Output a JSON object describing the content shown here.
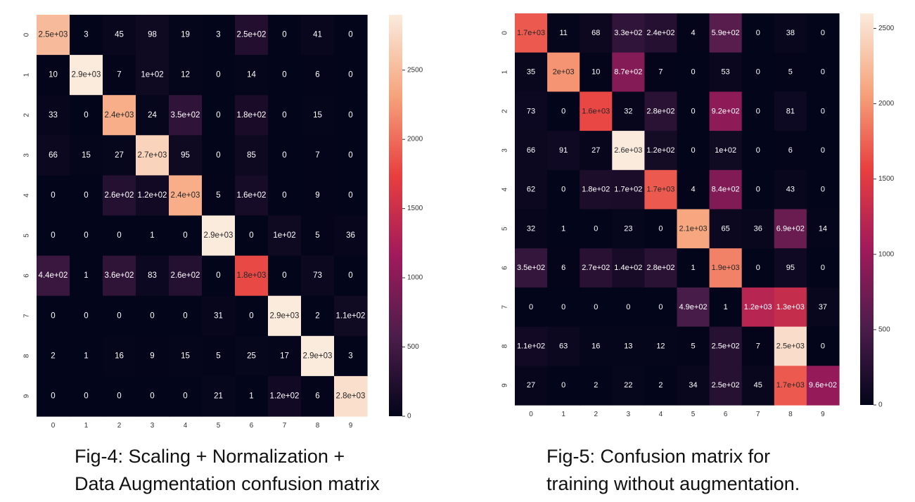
{
  "caption_fig4": {
    "line1": "Fig-4: Scaling + Normalization +",
    "line2": "Data Augmentation confusion matrix"
  },
  "caption_fig5": {
    "line1": "Fig-5: Confusion matrix for",
    "line2": "training without augmentation."
  },
  "chart_data": [
    {
      "type": "heatmap",
      "title": "",
      "xlabel": "",
      "ylabel": "",
      "x_ticks": [
        "0",
        "1",
        "2",
        "3",
        "4",
        "5",
        "6",
        "7",
        "8",
        "9"
      ],
      "y_ticks": [
        "0",
        "1",
        "2",
        "3",
        "4",
        "5",
        "6",
        "7",
        "8",
        "9"
      ],
      "values": [
        [
          2500,
          3,
          45,
          98,
          19,
          3,
          250,
          0,
          41,
          0
        ],
        [
          10,
          2900,
          7,
          100,
          12,
          0,
          14,
          0,
          6,
          0
        ],
        [
          33,
          0,
          2400,
          24,
          350,
          0,
          180,
          0,
          15,
          0
        ],
        [
          66,
          15,
          27,
          2700,
          95,
          0,
          85,
          0,
          7,
          0
        ],
        [
          0,
          0,
          260,
          120,
          2400,
          5,
          160,
          0,
          9,
          0
        ],
        [
          0,
          0,
          0,
          1,
          0,
          2900,
          0,
          100,
          5,
          36
        ],
        [
          440,
          1,
          360,
          83,
          260,
          0,
          1800,
          0,
          73,
          0
        ],
        [
          0,
          0,
          0,
          0,
          0,
          31,
          0,
          2900,
          2,
          110
        ],
        [
          2,
          1,
          16,
          9,
          15,
          5,
          25,
          17,
          2900,
          3
        ],
        [
          0,
          0,
          0,
          0,
          0,
          21,
          1,
          120,
          6,
          2800
        ]
      ],
      "labels": [
        [
          "2.5e+03",
          "3",
          "45",
          "98",
          "19",
          "3",
          "2.5e+02",
          "0",
          "41",
          "0"
        ],
        [
          "10",
          "2.9e+03",
          "7",
          "1e+02",
          "12",
          "0",
          "14",
          "0",
          "6",
          "0"
        ],
        [
          "33",
          "0",
          "2.4e+03",
          "24",
          "3.5e+02",
          "0",
          "1.8e+02",
          "0",
          "15",
          "0"
        ],
        [
          "66",
          "15",
          "27",
          "2.7e+03",
          "95",
          "0",
          "85",
          "0",
          "7",
          "0"
        ],
        [
          "0",
          "0",
          "2.6e+02",
          "1.2e+02",
          "2.4e+03",
          "5",
          "1.6e+02",
          "0",
          "9",
          "0"
        ],
        [
          "0",
          "0",
          "0",
          "1",
          "0",
          "2.9e+03",
          "0",
          "1e+02",
          "5",
          "36"
        ],
        [
          "4.4e+02",
          "1",
          "3.6e+02",
          "83",
          "2.6e+02",
          "0",
          "1.8e+03",
          "0",
          "73",
          "0"
        ],
        [
          "0",
          "0",
          "0",
          "0",
          "0",
          "31",
          "0",
          "2.9e+03",
          "2",
          "1.1e+02"
        ],
        [
          "2",
          "1",
          "16",
          "9",
          "15",
          "5",
          "25",
          "17",
          "2.9e+03",
          "3"
        ],
        [
          "0",
          "0",
          "0",
          "0",
          "0",
          "21",
          "1",
          "1.2e+02",
          "6",
          "2.8e+03"
        ]
      ],
      "colorbar": {
        "range": [
          0,
          2900
        ],
        "ticks": [
          0,
          500,
          1000,
          1500,
          2000,
          2500
        ],
        "tick_labels": [
          "0",
          "500",
          "1000",
          "1500",
          "2000",
          "2500"
        ]
      },
      "colormap": [
        "#03051a",
        "#4c1d4b",
        "#a11a5b",
        "#e83f3f",
        "#f6a47c",
        "#faebdd"
      ]
    },
    {
      "type": "heatmap",
      "title": "",
      "xlabel": "",
      "ylabel": "",
      "x_ticks": [
        "0",
        "1",
        "2",
        "3",
        "4",
        "5",
        "6",
        "7",
        "8",
        "9"
      ],
      "y_ticks": [
        "0",
        "1",
        "2",
        "3",
        "4",
        "5",
        "6",
        "7",
        "8",
        "9"
      ],
      "values": [
        [
          1700,
          11,
          68,
          330,
          240,
          4,
          590,
          0,
          38,
          0
        ],
        [
          35,
          2000,
          10,
          870,
          7,
          0,
          53,
          0,
          5,
          0
        ],
        [
          73,
          0,
          1600,
          32,
          280,
          0,
          920,
          0,
          81,
          0
        ],
        [
          66,
          91,
          27,
          2600,
          120,
          0,
          100,
          0,
          6,
          0
        ],
        [
          62,
          0,
          180,
          170,
          1700,
          4,
          840,
          0,
          43,
          0
        ],
        [
          32,
          1,
          0,
          23,
          0,
          2100,
          65,
          36,
          690,
          14
        ],
        [
          350,
          6,
          270,
          140,
          280,
          1,
          1900,
          0,
          95,
          0
        ],
        [
          0,
          0,
          0,
          0,
          0,
          490,
          1,
          1200,
          1300,
          37
        ],
        [
          110,
          63,
          16,
          13,
          12,
          5,
          250,
          7,
          2500,
          0
        ],
        [
          27,
          0,
          2,
          22,
          2,
          34,
          250,
          45,
          1700,
          960
        ]
      ],
      "labels": [
        [
          "1.7e+03",
          "11",
          "68",
          "3.3e+02",
          "2.4e+02",
          "4",
          "5.9e+02",
          "0",
          "38",
          "0"
        ],
        [
          "35",
          "2e+03",
          "10",
          "8.7e+02",
          "7",
          "0",
          "53",
          "0",
          "5",
          "0"
        ],
        [
          "73",
          "0",
          "1.6e+03",
          "32",
          "2.8e+02",
          "0",
          "9.2e+02",
          "0",
          "81",
          "0"
        ],
        [
          "66",
          "91",
          "27",
          "2.6e+03",
          "1.2e+02",
          "0",
          "1e+02",
          "0",
          "6",
          "0"
        ],
        [
          "62",
          "0",
          "1.8e+02",
          "1.7e+02",
          "1.7e+03",
          "4",
          "8.4e+02",
          "0",
          "43",
          "0"
        ],
        [
          "32",
          "1",
          "0",
          "23",
          "0",
          "2.1e+03",
          "65",
          "36",
          "6.9e+02",
          "14"
        ],
        [
          "3.5e+02",
          "6",
          "2.7e+02",
          "1.4e+02",
          "2.8e+02",
          "1",
          "1.9e+03",
          "0",
          "95",
          "0"
        ],
        [
          "0",
          "0",
          "0",
          "0",
          "0",
          "4.9e+02",
          "1",
          "1.2e+03",
          "1.3e+03",
          "37"
        ],
        [
          "1.1e+02",
          "63",
          "16",
          "13",
          "12",
          "5",
          "2.5e+02",
          "7",
          "2.5e+03",
          "0"
        ],
        [
          "27",
          "0",
          "2",
          "22",
          "2",
          "34",
          "2.5e+02",
          "45",
          "1.7e+03",
          "9.6e+02"
        ]
      ],
      "colorbar": {
        "range": [
          0,
          2600
        ],
        "ticks": [
          0,
          500,
          1000,
          1500,
          2000,
          2500
        ],
        "tick_labels": [
          "0",
          "500",
          "1000",
          "1500",
          "2000",
          "2500"
        ]
      },
      "colormap": [
        "#03051a",
        "#4c1d4b",
        "#a11a5b",
        "#e83f3f",
        "#f6a47c",
        "#faebdd"
      ]
    }
  ]
}
